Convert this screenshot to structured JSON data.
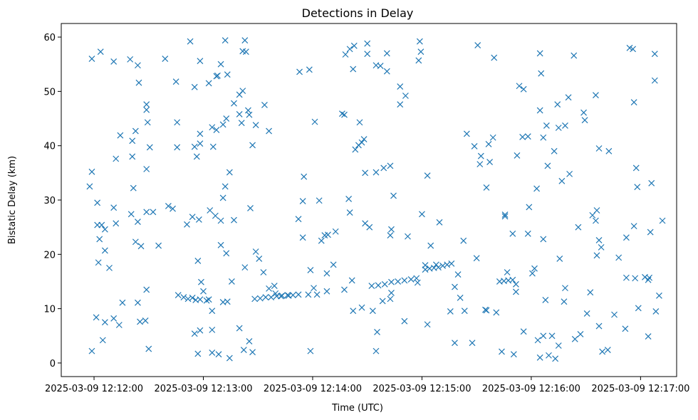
{
  "chart_data": {
    "type": "scatter",
    "title": "Detections in Delay",
    "xlabel": "Time (UTC)",
    "ylabel": "Bistatic Delay (km)",
    "marker": "x",
    "color": "#1f77b4",
    "xlim": [
      -0.3,
      5.33
    ],
    "ylim": [
      -2.5,
      62.5
    ],
    "x_ticks": [
      {
        "value": 0,
        "label": "2025-03-09 12:12:00"
      },
      {
        "value": 1,
        "label": "2025-03-09 12:13:00"
      },
      {
        "value": 2,
        "label": "2025-03-09 12:14:00"
      },
      {
        "value": 3,
        "label": "2025-03-09 12:15:00"
      },
      {
        "value": 4,
        "label": "2025-03-09 12:16:00"
      },
      {
        "value": 5,
        "label": "2025-03-09 12:17:00"
      }
    ],
    "y_ticks": [
      {
        "value": 0,
        "label": "0"
      },
      {
        "value": 10,
        "label": "10"
      },
      {
        "value": 20,
        "label": "20"
      },
      {
        "value": 30,
        "label": "30"
      },
      {
        "value": 40,
        "label": "40"
      },
      {
        "value": 50,
        "label": "50"
      },
      {
        "value": 60,
        "label": "60"
      }
    ],
    "x_unit": "minutes after 2025-03-09 12:12:00",
    "points": [
      [
        -0.02,
        56.0
      ],
      [
        0.06,
        57.3
      ],
      [
        0.33,
        55.9
      ],
      [
        0.4,
        54.8
      ],
      [
        0.65,
        56.0
      ],
      [
        0.88,
        59.2
      ],
      [
        1.2,
        59.4
      ],
      [
        1.38,
        59.4
      ],
      [
        1.39,
        57.3
      ],
      [
        1.36,
        57.4
      ],
      [
        2.3,
        56.8
      ],
      [
        2.34,
        57.8
      ],
      [
        2.38,
        58.4
      ],
      [
        2.5,
        58.8
      ],
      [
        2.5,
        56.9
      ],
      [
        2.68,
        57.0
      ],
      [
        2.98,
        59.2
      ],
      [
        2.99,
        57.3
      ],
      [
        2.62,
        54.7
      ],
      [
        2.58,
        54.8
      ],
      [
        0.18,
        55.5
      ],
      [
        0.97,
        55.6
      ],
      [
        1.12,
        52.8
      ],
      [
        1.13,
        52.9
      ],
      [
        1.16,
        55.0
      ],
      [
        1.22,
        53.1
      ],
      [
        1.88,
        53.6
      ],
      [
        1.97,
        54.0
      ],
      [
        2.37,
        54.1
      ],
      [
        2.68,
        53.7
      ],
      [
        2.97,
        55.7
      ],
      [
        2.85,
        49.2
      ],
      [
        2.8,
        50.9
      ],
      [
        2.8,
        47.6
      ],
      [
        3.51,
        58.5
      ],
      [
        3.66,
        56.2
      ],
      [
        4.08,
        57.0
      ],
      [
        4.39,
        56.6
      ],
      [
        4.9,
        58.0
      ],
      [
        4.93,
        57.8
      ],
      [
        5.13,
        56.9
      ],
      [
        5.13,
        52.0
      ],
      [
        4.08,
        46.5
      ],
      [
        4.09,
        53.3
      ],
      [
        3.89,
        51.0
      ],
      [
        3.93,
        50.4
      ],
      [
        4.24,
        47.6
      ],
      [
        4.48,
        46.1
      ],
      [
        4.49,
        44.7
      ],
      [
        4.59,
        49.3
      ],
      [
        4.94,
        48.0
      ],
      [
        0.41,
        51.6
      ],
      [
        0.75,
        51.8
      ],
      [
        0.92,
        50.8
      ],
      [
        1.05,
        51.5
      ],
      [
        1.56,
        47.5
      ],
      [
        1.36,
        50.1
      ],
      [
        1.33,
        49.4
      ],
      [
        1.28,
        47.8
      ],
      [
        1.41,
        46.5
      ],
      [
        0.48,
        47.6
      ],
      [
        0.48,
        46.6
      ],
      [
        0.49,
        44.3
      ],
      [
        0.76,
        44.3
      ],
      [
        0.97,
        42.2
      ],
      [
        1.08,
        43.4
      ],
      [
        1.12,
        42.9
      ],
      [
        1.33,
        45.8
      ],
      [
        1.21,
        45.0
      ],
      [
        1.18,
        43.9
      ],
      [
        1.48,
        43.8
      ],
      [
        1.6,
        42.7
      ],
      [
        2.02,
        44.4
      ],
      [
        2.29,
        45.7
      ],
      [
        2.27,
        45.9
      ],
      [
        2.43,
        44.3
      ],
      [
        2.06,
        29.9
      ],
      [
        0.24,
        41.9
      ],
      [
        0.38,
        42.7
      ],
      [
        0.2,
        37.6
      ],
      [
        0.35,
        40.9
      ],
      [
        0.35,
        38.0
      ],
      [
        0.51,
        39.7
      ],
      [
        0.76,
        39.7
      ],
      [
        0.92,
        39.8
      ],
      [
        0.97,
        40.4
      ],
      [
        1.09,
        39.8
      ],
      [
        1.45,
        40.1
      ],
      [
        1.35,
        44.2
      ],
      [
        1.42,
        45.7
      ],
      [
        2.39,
        39.3
      ],
      [
        2.42,
        40.1
      ],
      [
        2.65,
        35.9
      ],
      [
        2.71,
        36.3
      ],
      [
        2.58,
        35.1
      ],
      [
        2.47,
        41.2
      ],
      [
        2.45,
        40.6
      ],
      [
        3.41,
        42.2
      ],
      [
        3.48,
        39.9
      ],
      [
        3.54,
        38.1
      ],
      [
        3.61,
        40.3
      ],
      [
        3.65,
        41.5
      ],
      [
        3.53,
        36.6
      ],
      [
        3.62,
        37.0
      ],
      [
        3.92,
        41.6
      ],
      [
        3.97,
        41.7
      ],
      [
        4.11,
        41.5
      ],
      [
        4.14,
        43.7
      ],
      [
        4.21,
        39.0
      ],
      [
        4.25,
        43.3
      ],
      [
        4.31,
        43.7
      ],
      [
        4.34,
        48.9
      ],
      [
        4.62,
        39.5
      ],
      [
        4.71,
        39.0
      ],
      [
        4.35,
        34.8
      ],
      [
        4.28,
        33.5
      ],
      [
        4.96,
        35.9
      ],
      [
        4.15,
        36.3
      ],
      [
        -0.04,
        32.5
      ],
      [
        -0.02,
        35.2
      ],
      [
        0.03,
        29.5
      ],
      [
        0.18,
        28.6
      ],
      [
        0.36,
        32.2
      ],
      [
        0.34,
        27.4
      ],
      [
        0.4,
        26.0
      ],
      [
        0.48,
        35.7
      ],
      [
        0.48,
        27.8
      ],
      [
        0.54,
        27.8
      ],
      [
        0.94,
        38.0
      ],
      [
        1.18,
        30.4
      ],
      [
        1.2,
        32.5
      ],
      [
        1.24,
        35.1
      ],
      [
        1.16,
        26.2
      ],
      [
        1.28,
        26.3
      ],
      [
        1.43,
        28.5
      ],
      [
        1.92,
        34.3
      ],
      [
        1.91,
        29.8
      ],
      [
        2.33,
        30.2
      ],
      [
        2.48,
        35.0
      ],
      [
        2.74,
        30.8
      ],
      [
        2.52,
        25.0
      ],
      [
        3.05,
        34.5
      ],
      [
        3.59,
        32.3
      ],
      [
        3.87,
        38.2
      ],
      [
        3.98,
        28.7
      ],
      [
        3.76,
        27.3
      ],
      [
        3.76,
        27.0
      ],
      [
        4.05,
        32.1
      ],
      [
        4.56,
        27.2
      ],
      [
        4.6,
        28.1
      ],
      [
        5.2,
        26.2
      ],
      [
        5.1,
        33.1
      ],
      [
        4.97,
        32.4
      ],
      [
        0.03,
        25.4
      ],
      [
        0.07,
        25.4
      ],
      [
        0.1,
        24.6
      ],
      [
        0.2,
        25.7
      ],
      [
        0.05,
        22.8
      ],
      [
        0.1,
        20.7
      ],
      [
        0.14,
        17.5
      ],
      [
        0.04,
        18.5
      ],
      [
        0.38,
        22.3
      ],
      [
        0.43,
        21.5
      ],
      [
        0.59,
        21.6
      ],
      [
        0.68,
        28.9
      ],
      [
        0.72,
        28.4
      ],
      [
        0.85,
        25.5
      ],
      [
        0.9,
        26.9
      ],
      [
        0.96,
        26.4
      ],
      [
        1.06,
        28.1
      ],
      [
        1.11,
        27.1
      ],
      [
        1.16,
        21.7
      ],
      [
        1.21,
        20.2
      ],
      [
        1.48,
        20.5
      ],
      [
        1.87,
        26.5
      ],
      [
        1.91,
        23.1
      ],
      [
        1.98,
        17.1
      ],
      [
        2.08,
        22.5
      ],
      [
        2.11,
        23.5
      ],
      [
        2.14,
        23.6
      ],
      [
        2.21,
        24.2
      ],
      [
        2.34,
        27.7
      ],
      [
        2.48,
        25.7
      ],
      [
        2.71,
        23.5
      ],
      [
        2.72,
        24.6
      ],
      [
        2.87,
        23.3
      ],
      [
        3.0,
        27.4
      ],
      [
        3.16,
        25.9
      ],
      [
        3.03,
        18.0
      ],
      [
        3.05,
        7.1
      ],
      [
        3.08,
        21.6
      ],
      [
        3.13,
        18.1
      ],
      [
        3.38,
        22.5
      ],
      [
        3.5,
        19.3
      ],
      [
        3.83,
        23.8
      ],
      [
        3.97,
        23.8
      ],
      [
        4.11,
        22.8
      ],
      [
        4.26,
        19.2
      ],
      [
        4.43,
        25.0
      ],
      [
        4.62,
        22.6
      ],
      [
        4.59,
        26.2
      ],
      [
        4.64,
        21.3
      ],
      [
        4.6,
        19.8
      ],
      [
        4.8,
        19.4
      ],
      [
        4.87,
        23.1
      ],
      [
        5.09,
        24.1
      ],
      [
        5.17,
        12.4
      ],
      [
        4.94,
        25.2
      ],
      [
        0.02,
        8.4
      ],
      [
        0.18,
        8.2
      ],
      [
        0.1,
        7.5
      ],
      [
        0.23,
        7.0
      ],
      [
        0.26,
        11.1
      ],
      [
        0.4,
        11.1
      ],
      [
        0.48,
        13.5
      ],
      [
        0.42,
        7.6
      ],
      [
        0.47,
        7.8
      ],
      [
        0.5,
        2.6
      ],
      [
        0.08,
        4.2
      ],
      [
        -0.02,
        2.2
      ],
      [
        0.95,
        18.8
      ],
      [
        1.0,
        13.2
      ],
      [
        1.08,
        9.6
      ],
      [
        1.18,
        11.2
      ],
      [
        1.22,
        11.3
      ],
      [
        1.26,
        15.0
      ],
      [
        0.92,
        5.4
      ],
      [
        0.97,
        6.0
      ],
      [
        1.08,
        6.1
      ],
      [
        0.98,
        14.9
      ],
      [
        0.95,
        1.7
      ],
      [
        1.08,
        1.9
      ],
      [
        1.14,
        1.6
      ],
      [
        1.24,
        0.9
      ],
      [
        1.51,
        19.2
      ],
      [
        1.38,
        17.6
      ],
      [
        1.33,
        6.4
      ],
      [
        1.37,
        2.4
      ],
      [
        1.42,
        4.0
      ],
      [
        1.45,
        2.0
      ],
      [
        1.55,
        16.7
      ],
      [
        1.6,
        13.7
      ],
      [
        1.65,
        14.2
      ],
      [
        1.66,
        12.8
      ],
      [
        1.71,
        12.3
      ],
      [
        1.78,
        12.4
      ],
      [
        1.96,
        12.6
      ],
      [
        2.01,
        13.8
      ],
      [
        2.04,
        12.6
      ],
      [
        2.13,
        13.2
      ],
      [
        2.13,
        16.5
      ],
      [
        2.19,
        18.1
      ],
      [
        2.29,
        13.5
      ],
      [
        2.36,
        15.2
      ],
      [
        2.37,
        9.6
      ],
      [
        2.45,
        10.2
      ],
      [
        2.55,
        9.6
      ],
      [
        2.64,
        11.4
      ],
      [
        2.71,
        11.8
      ],
      [
        2.72,
        12.9
      ],
      [
        2.84,
        7.7
      ],
      [
        2.96,
        14.8
      ],
      [
        2.59,
        5.7
      ],
      [
        2.58,
        2.2
      ],
      [
        3.33,
        16.3
      ],
      [
        3.3,
        14.0
      ],
      [
        3.35,
        12.0
      ],
      [
        3.39,
        9.6
      ],
      [
        3.46,
        3.7
      ],
      [
        3.58,
        9.8
      ],
      [
        3.59,
        9.7
      ],
      [
        3.68,
        9.3
      ],
      [
        3.73,
        2.1
      ],
      [
        3.78,
        16.7
      ],
      [
        3.84,
        1.6
      ],
      [
        3.86,
        14.5
      ],
      [
        3.86,
        13.1
      ],
      [
        3.93,
        5.8
      ],
      [
        4.03,
        17.4
      ],
      [
        4.01,
        16.5
      ],
      [
        4.06,
        4.2
      ],
      [
        4.08,
        1.0
      ],
      [
        4.13,
        11.6
      ],
      [
        4.11,
        5.0
      ],
      [
        4.19,
        5.0
      ],
      [
        4.16,
        1.4
      ],
      [
        4.22,
        0.8
      ],
      [
        4.25,
        3.2
      ],
      [
        4.31,
        13.8
      ],
      [
        4.3,
        11.3
      ],
      [
        4.4,
        4.4
      ],
      [
        4.45,
        5.3
      ],
      [
        4.51,
        9.1
      ],
      [
        4.54,
        13.0
      ],
      [
        4.62,
        6.8
      ],
      [
        4.65,
        2.1
      ],
      [
        4.7,
        2.4
      ],
      [
        4.76,
        8.9
      ],
      [
        4.86,
        6.3
      ],
      [
        4.87,
        15.7
      ],
      [
        4.95,
        15.6
      ],
      [
        4.98,
        10.1
      ],
      [
        5.07,
        15.3
      ],
      [
        5.08,
        15.7
      ],
      [
        5.07,
        4.9
      ],
      [
        5.14,
        9.5
      ],
      [
        5.04,
        15.8
      ],
      [
        3.3,
        3.7
      ],
      [
        3.26,
        9.5
      ],
      [
        1.98,
        2.2
      ],
      [
        0.77,
        12.5
      ],
      [
        0.9,
        12.0
      ],
      [
        1.05,
        11.7
      ],
      [
        0.82,
        12.1
      ],
      [
        0.86,
        11.8
      ],
      [
        0.93,
        11.6
      ],
      [
        0.97,
        11.7
      ],
      [
        1.03,
        11.5
      ],
      [
        1.47,
        11.8
      ],
      [
        1.52,
        11.9
      ],
      [
        1.57,
        12.1
      ],
      [
        1.62,
        12.1
      ],
      [
        1.67,
        12.3
      ],
      [
        1.72,
        12.4
      ],
      [
        1.77,
        12.5
      ],
      [
        1.82,
        12.5
      ],
      [
        1.87,
        12.6
      ],
      [
        2.54,
        14.2
      ],
      [
        2.6,
        14.3
      ],
      [
        2.66,
        14.5
      ],
      [
        2.72,
        14.9
      ],
      [
        2.78,
        15.0
      ],
      [
        2.84,
        15.2
      ],
      [
        2.9,
        15.4
      ],
      [
        2.95,
        15.6
      ],
      [
        3.03,
        17.2
      ],
      [
        3.07,
        17.4
      ],
      [
        3.11,
        17.5
      ],
      [
        3.15,
        17.6
      ],
      [
        3.19,
        17.9
      ],
      [
        3.23,
        18.1
      ],
      [
        3.27,
        18.3
      ],
      [
        3.71,
        15.0
      ],
      [
        3.75,
        15.1
      ],
      [
        3.79,
        15.2
      ],
      [
        3.83,
        15.3
      ]
    ]
  }
}
